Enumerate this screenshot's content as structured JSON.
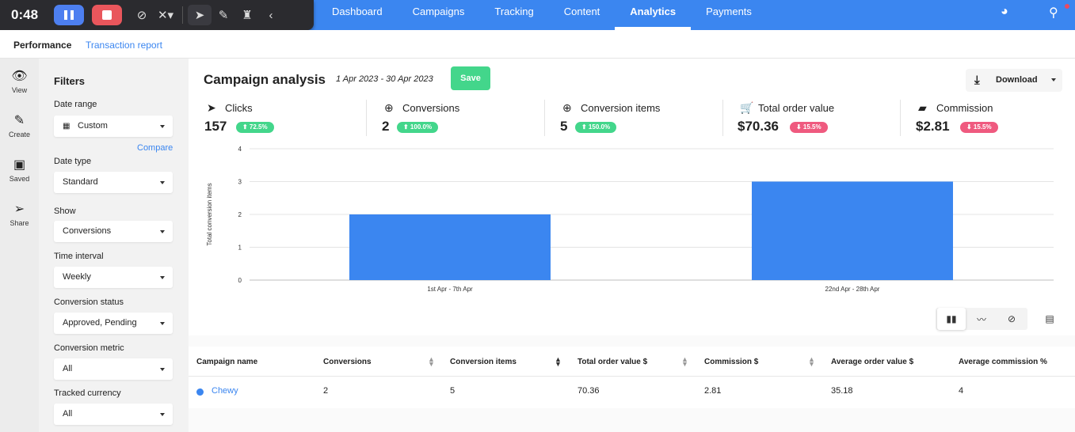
{
  "recorder": {
    "timer": "0:48",
    "icons": [
      "pause-icon",
      "stop-icon",
      "mic-off-icon",
      "cursor-off-icon",
      "pointer-icon",
      "pen-icon",
      "broom-icon",
      "chevron-left-icon"
    ]
  },
  "nav": {
    "items": [
      "Dashboard",
      "Campaigns",
      "Tracking",
      "Content",
      "Analytics",
      "Payments"
    ],
    "active": "Analytics"
  },
  "subtabs": {
    "performance": "Performance",
    "transaction": "Transaction report"
  },
  "rail": {
    "view": "View",
    "create": "Create",
    "saved": "Saved",
    "share": "Share"
  },
  "filters": {
    "title": "Filters",
    "compare": "Compare",
    "fields": [
      {
        "label": "Date range",
        "value": "Custom"
      },
      {
        "label": "Date type",
        "value": "Standard"
      },
      {
        "label": "Show",
        "value": "Conversions"
      },
      {
        "label": "Time interval",
        "value": "Weekly"
      },
      {
        "label": "Conversion status",
        "value": "Approved, Pending"
      },
      {
        "label": "Conversion metric",
        "value": "All"
      },
      {
        "label": "Tracked currency",
        "value": "All"
      }
    ]
  },
  "main": {
    "title": "Campaign analysis",
    "date_range": "1 Apr 2023 - 30 Apr 2023",
    "save": "Save",
    "download": "Download"
  },
  "metrics": [
    {
      "label": "Clicks",
      "value": "157",
      "change": "⬆ 72.5%",
      "dir": "up"
    },
    {
      "label": "Conversions",
      "value": "2",
      "change": "⬆ 100.0%",
      "dir": "up"
    },
    {
      "label": "Conversion items",
      "value": "5",
      "change": "⬆ 150.0%",
      "dir": "up"
    },
    {
      "label": "Total order value",
      "value": "$70.36",
      "change": "⬇ 15.5%",
      "dir": "down"
    },
    {
      "label": "Commission",
      "value": "$2.81",
      "change": "⬇ 15.5%",
      "dir": "down"
    }
  ],
  "chart_data": {
    "type": "bar",
    "categories": [
      "1st Apr - 7th Apr",
      "22nd Apr - 28th Apr"
    ],
    "values": [
      2,
      3
    ],
    "ylabel": "Total conversion items",
    "ylim": [
      0,
      4
    ],
    "yticks": [
      "0",
      "1",
      "2",
      "3",
      "4"
    ],
    "color": "#3b86f0",
    "grid": true
  },
  "table": {
    "headers": [
      "Campaign name",
      "Conversions",
      "Conversion items",
      "Total order value $",
      "Commission $",
      "Average order value $",
      "Average commission %"
    ],
    "rows": [
      [
        "Chewy",
        "2",
        "5",
        "70.36",
        "2.81",
        "35.18",
        "4"
      ]
    ]
  }
}
